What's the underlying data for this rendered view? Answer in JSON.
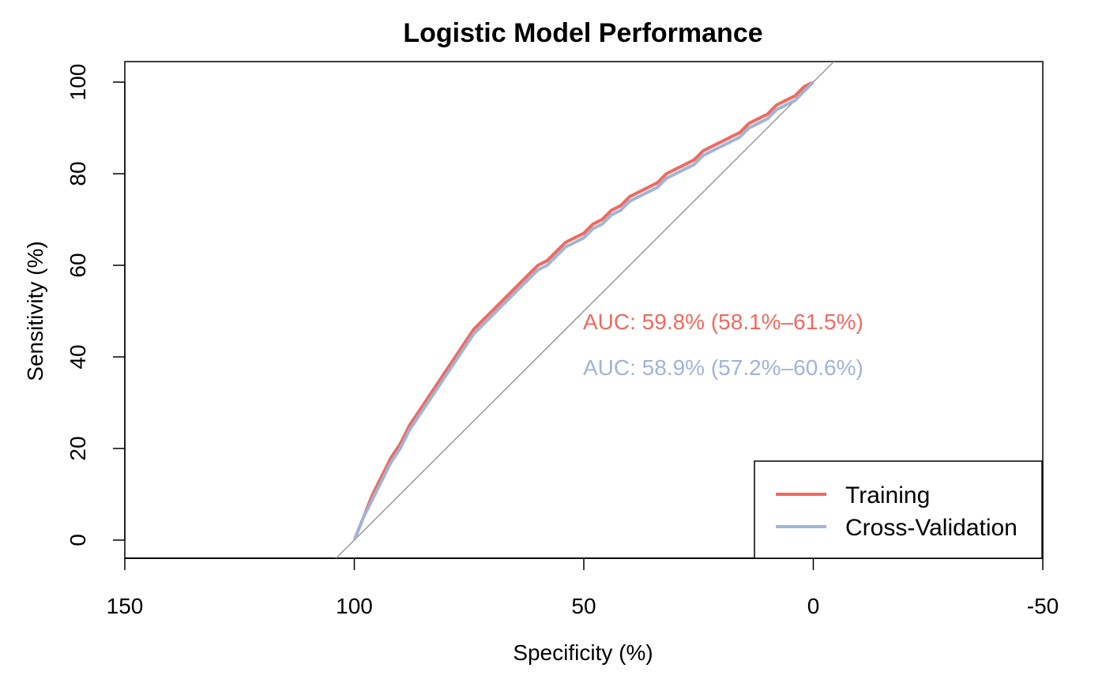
{
  "chart_data": {
    "type": "line",
    "title": "Logistic Model Performance",
    "xlabel": "Specificity (%)",
    "ylabel": "Sensitivity (%)",
    "xlim": [
      150,
      -50
    ],
    "ylim": [
      0,
      100
    ],
    "x_ticks": [
      150,
      100,
      50,
      0,
      -50
    ],
    "y_ticks": [
      0,
      20,
      40,
      60,
      80,
      100
    ],
    "reference_line": {
      "color": "#999999",
      "from": [
        100,
        0
      ],
      "to": [
        0,
        100
      ]
    },
    "series": [
      {
        "name": "Training",
        "color": "#EE6A5F",
        "points": [
          [
            100,
            0
          ],
          [
            98,
            5
          ],
          [
            96,
            10
          ],
          [
            94,
            14
          ],
          [
            92,
            18
          ],
          [
            90,
            21
          ],
          [
            88,
            25
          ],
          [
            86,
            28
          ],
          [
            84,
            31
          ],
          [
            82,
            34
          ],
          [
            80,
            37
          ],
          [
            78,
            40
          ],
          [
            76,
            43
          ],
          [
            74,
            46
          ],
          [
            72,
            48
          ],
          [
            70,
            50
          ],
          [
            68,
            52
          ],
          [
            66,
            54
          ],
          [
            64,
            56
          ],
          [
            62,
            58
          ],
          [
            60,
            60
          ],
          [
            58,
            61
          ],
          [
            56,
            63
          ],
          [
            54,
            65
          ],
          [
            52,
            66
          ],
          [
            50,
            67
          ],
          [
            48,
            69
          ],
          [
            46,
            70
          ],
          [
            44,
            72
          ],
          [
            42,
            73
          ],
          [
            40,
            75
          ],
          [
            38,
            76
          ],
          [
            36,
            77
          ],
          [
            34,
            78
          ],
          [
            32,
            80
          ],
          [
            30,
            81
          ],
          [
            28,
            82
          ],
          [
            26,
            83
          ],
          [
            24,
            85
          ],
          [
            22,
            86
          ],
          [
            20,
            87
          ],
          [
            18,
            88
          ],
          [
            16,
            89
          ],
          [
            14,
            91
          ],
          [
            12,
            92
          ],
          [
            10,
            93
          ],
          [
            8,
            95
          ],
          [
            6,
            96
          ],
          [
            4,
            97
          ],
          [
            2,
            99
          ],
          [
            0,
            100
          ]
        ]
      },
      {
        "name": "Cross-Validation",
        "color": "#A0B4D6",
        "points": [
          [
            100,
            0
          ],
          [
            98,
            5
          ],
          [
            96,
            9
          ],
          [
            94,
            13
          ],
          [
            92,
            17
          ],
          [
            90,
            20
          ],
          [
            88,
            24
          ],
          [
            86,
            27
          ],
          [
            84,
            30
          ],
          [
            82,
            33
          ],
          [
            80,
            36
          ],
          [
            78,
            39
          ],
          [
            76,
            42
          ],
          [
            74,
            45
          ],
          [
            72,
            47
          ],
          [
            70,
            49
          ],
          [
            68,
            51
          ],
          [
            66,
            53
          ],
          [
            64,
            55
          ],
          [
            62,
            57
          ],
          [
            60,
            59
          ],
          [
            58,
            60
          ],
          [
            56,
            62
          ],
          [
            54,
            64
          ],
          [
            52,
            65
          ],
          [
            50,
            66
          ],
          [
            48,
            68
          ],
          [
            46,
            69
          ],
          [
            44,
            71
          ],
          [
            42,
            72
          ],
          [
            40,
            74
          ],
          [
            38,
            75
          ],
          [
            36,
            76
          ],
          [
            34,
            77
          ],
          [
            32,
            79
          ],
          [
            30,
            80
          ],
          [
            28,
            81
          ],
          [
            26,
            82
          ],
          [
            24,
            84
          ],
          [
            22,
            85
          ],
          [
            20,
            86
          ],
          [
            18,
            87
          ],
          [
            16,
            88
          ],
          [
            14,
            90
          ],
          [
            12,
            91
          ],
          [
            10,
            92
          ],
          [
            8,
            94
          ],
          [
            6,
            95
          ],
          [
            4,
            96
          ],
          [
            2,
            98
          ],
          [
            0,
            100
          ]
        ]
      }
    ],
    "annotations": [
      {
        "text": "AUC: 59.8% (58.1%–61.5%)",
        "color": "#EE6A5F"
      },
      {
        "text": "AUC: 58.9% (57.2%–60.6%)",
        "color": "#A0B4D6"
      }
    ],
    "legend": {
      "position": "bottom-right",
      "entries": [
        "Training",
        "Cross-Validation"
      ]
    },
    "grid": false
  }
}
